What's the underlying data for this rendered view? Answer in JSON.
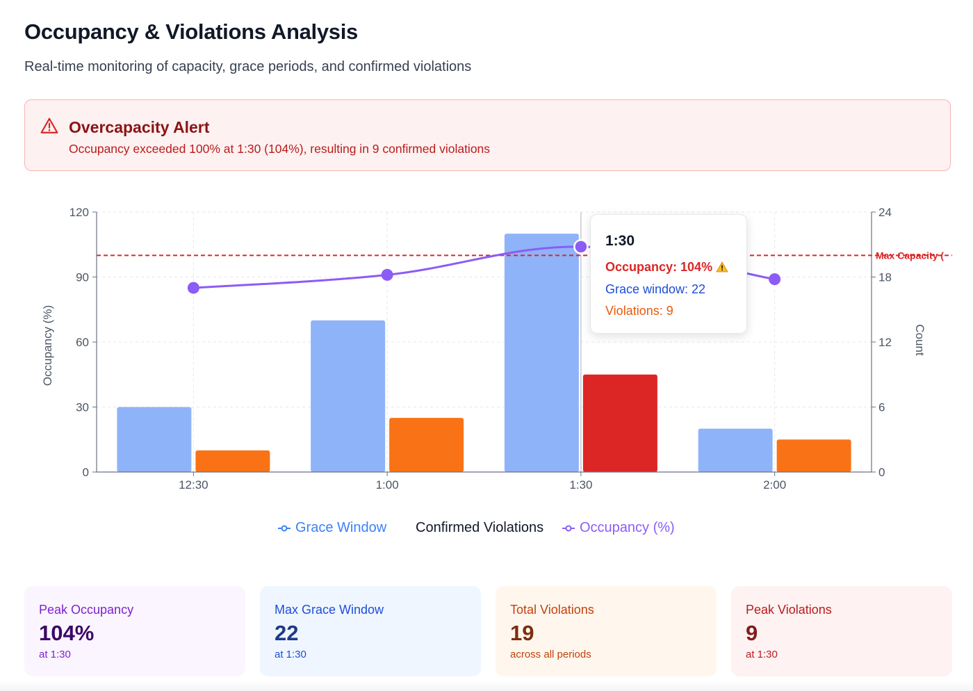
{
  "header": {
    "title": "Occupancy & Violations Analysis",
    "subtitle": "Real-time monitoring of capacity, grace periods, and confirmed violations"
  },
  "alert": {
    "icon": "warning-triangle-icon",
    "title": "Overcapacity Alert",
    "message": "Occupancy exceeded 100% at 1:30 (104%), resulting in 9 confirmed violations",
    "colors": {
      "background": "#fdf1f1",
      "border": "#f6b4b4",
      "title": "#8b1414",
      "text": "#b91c1c"
    }
  },
  "chart_data": {
    "type": "bar",
    "categories": [
      "12:30",
      "1:00",
      "1:30",
      "2:00"
    ],
    "ylabel": "Occupancy (%)",
    "y2label": "Count",
    "ylim": [
      0,
      120
    ],
    "y2lim": [
      0,
      24
    ],
    "yticks": [
      0,
      30,
      60,
      90,
      120
    ],
    "y2ticks": [
      0,
      6,
      12,
      18,
      24
    ],
    "grid": true,
    "series": [
      {
        "name": "Grace Window",
        "type": "bar",
        "axis": "y2",
        "values": [
          6,
          14,
          22,
          4
        ],
        "color": "#8fb3f8"
      },
      {
        "name": "Confirmed Violations",
        "type": "bar",
        "axis": "y2",
        "values": [
          2,
          5,
          9,
          3
        ],
        "color": "#f97316",
        "highlight_color": "#dc2626"
      },
      {
        "name": "Occupancy (%)",
        "type": "line",
        "axis": "y",
        "values": [
          85,
          91,
          104,
          89
        ],
        "color": "#8b5cf6"
      }
    ],
    "reference_line": {
      "label": "Max Capacity (",
      "value": 100,
      "axis": "y",
      "color": "#dc2626"
    },
    "legend": {
      "position": "bottom",
      "items": [
        {
          "label": "Grace Window",
          "color": "#3b82f6"
        },
        {
          "label": "Confirmed Violations",
          "color": "#111827"
        },
        {
          "label": "Occupancy (%)",
          "color": "#8b5cf6"
        }
      ]
    },
    "tooltip": {
      "title": "1:30",
      "occupancy": "Occupancy: 104%",
      "grace": "Grace window: 22",
      "violations": "Violations: 9"
    }
  },
  "cards": [
    {
      "label": "Peak Occupancy",
      "value": "104%",
      "sub": "at 1:30",
      "bg": "#faf5ff",
      "label_color": "#7e22ce",
      "value_color": "#3b0764",
      "sub_color": "#7e22ce"
    },
    {
      "label": "Max Grace Window",
      "value": "22",
      "sub": "at 1:30",
      "bg": "#eff6ff",
      "label_color": "#1d4ed8",
      "value_color": "#1e3a8a",
      "sub_color": "#1d4ed8"
    },
    {
      "label": "Total Violations",
      "value": "19",
      "sub": "across all periods",
      "bg": "#fff7ed",
      "label_color": "#c2410c",
      "value_color": "#7c2d12",
      "sub_color": "#c2410c"
    },
    {
      "label": "Peak Violations",
      "value": "9",
      "sub": "at 1:30",
      "bg": "#fef2f2",
      "label_color": "#b91c1c",
      "value_color": "#7f1d1d",
      "sub_color": "#b91c1c"
    }
  ]
}
